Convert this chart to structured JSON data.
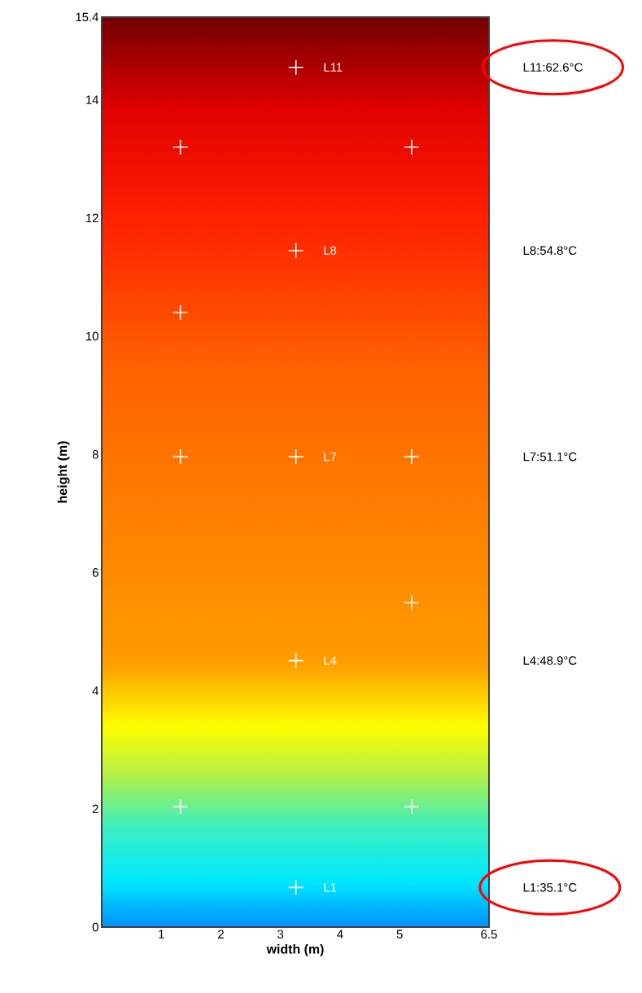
{
  "chart_data": {
    "type": "scatter",
    "xlabel": "width (m)",
    "ylabel": "height (m)",
    "color": "#ffffff",
    "marker": "cross",
    "x": [
      3.26,
      3.26,
      3.26,
      3.26,
      3.26,
      1.32,
      5.2,
      1.32,
      1.32,
      5.2,
      5.2,
      1.32,
      5.2
    ],
    "values": [
      14.55,
      11.45,
      7.96,
      4.51,
      0.67,
      13.2,
      13.2,
      10.4,
      7.96,
      7.96,
      5.49,
      2.04,
      2.04
    ],
    "xlim": [
      0,
      6.5
    ],
    "ylim": [
      0,
      15.4
    ],
    "xticks": [
      1,
      2,
      3,
      4,
      5,
      6.5
    ],
    "yticks": [
      0,
      2,
      4,
      6,
      8,
      10,
      12,
      14,
      15.4
    ],
    "annotations": [
      "L11",
      "L8",
      "L7",
      "L4",
      "L1",
      "L11:62.6°C",
      "L8:54.8°C",
      "L7:51.1°C",
      "L4:48.9°C",
      "L1:35.1°C"
    ]
  }
}
